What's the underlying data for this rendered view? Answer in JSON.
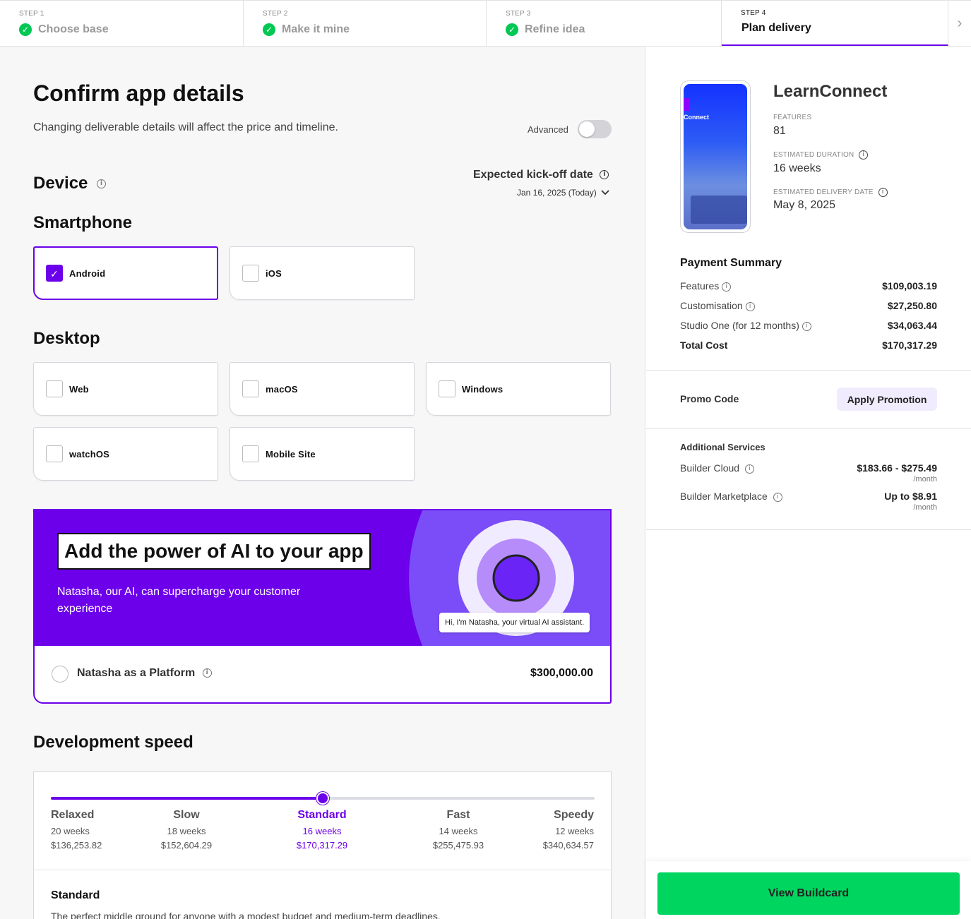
{
  "stepper": {
    "steps": [
      {
        "num": "STEP 1",
        "label": "Choose base"
      },
      {
        "num": "STEP 2",
        "label": "Make it mine"
      },
      {
        "num": "STEP 3",
        "label": "Refine idea"
      },
      {
        "num": "STEP 4",
        "label": "Plan delivery"
      }
    ],
    "check_glyph": "✓",
    "next_glyph": "›"
  },
  "main": {
    "title": "Confirm app details",
    "subtitle": "Changing deliverable details will affect the price and timeline.",
    "advanced_label": "Advanced",
    "advanced_on": false,
    "device_heading": "Device",
    "kickoff_label": "Expected kick-off date",
    "kickoff_value": "Jan 16, 2025 (Today)",
    "smartphone_heading": "Smartphone",
    "smartphone": [
      {
        "label": "Android",
        "selected": true
      },
      {
        "label": "iOS",
        "selected": false
      }
    ],
    "desktop_heading": "Desktop",
    "desktop": [
      {
        "label": "Web",
        "selected": false
      },
      {
        "label": "macOS",
        "selected": false
      },
      {
        "label": "Windows",
        "selected": false
      },
      {
        "label": "watchOS",
        "selected": false
      },
      {
        "label": "Mobile Site",
        "selected": false
      }
    ],
    "checkmark": "✓",
    "ai": {
      "title": "Add the power of AI to your app",
      "description": "Natasha, our AI, can supercharge your customer experience",
      "bubble": "Hi, I'm Natasha, your virtual AI assistant.",
      "option_label": "Natasha as a Platform",
      "option_price": "$300,000.00"
    },
    "speed_heading": "Development speed",
    "speed_options": [
      {
        "name": "Relaxed",
        "weeks": "20 weeks",
        "price": "$136,253.82"
      },
      {
        "name": "Slow",
        "weeks": "18 weeks",
        "price": "$152,604.29"
      },
      {
        "name": "Standard",
        "weeks": "16 weeks",
        "price": "$170,317.29"
      },
      {
        "name": "Fast",
        "weeks": "14 weeks",
        "price": "$255,475.93"
      },
      {
        "name": "Speedy",
        "weeks": "12 weeks",
        "price": "$340,634.57"
      }
    ],
    "speed_selected_index": 2,
    "speed_detail_title": "Standard",
    "speed_detail_desc": "The perfect middle ground for anyone with a modest budget and medium-term deadlines."
  },
  "summary": {
    "phone_text": "Connect",
    "app_name": "LearnConnect",
    "features_label": "FEATURES",
    "features_value": "81",
    "duration_label": "ESTIMATED DURATION",
    "duration_value": "16 weeks",
    "delivery_label": "ESTIMATED DELIVERY DATE",
    "delivery_value": "May 8, 2025",
    "payment_title": "Payment Summary",
    "payment_rows": [
      {
        "label": "Features",
        "value": "$109,003.19"
      },
      {
        "label": "Customisation",
        "value": "$27,250.80"
      },
      {
        "label": "Studio One (for 12 months)",
        "value": "$34,063.44"
      },
      {
        "label": "Total Cost",
        "value": "$170,317.29"
      }
    ],
    "promo_label": "Promo Code",
    "promo_button": "Apply Promotion",
    "additional_title": "Additional Services",
    "additional": [
      {
        "label": "Builder Cloud",
        "value": "$183.66 - $275.49",
        "unit": "/month"
      },
      {
        "label": "Builder Marketplace",
        "value": "Up to $8.91",
        "unit": "/month"
      }
    ],
    "cta": "View Buildcard"
  },
  "colors": {
    "accent": "#6c00ea",
    "success": "#00c853",
    "cta": "#00d65f",
    "panel_bg": "#f7f7f8"
  },
  "icons": [
    "check-circle-icon",
    "chevron-right-icon",
    "info-icon",
    "chevron-down-icon",
    "checkbox-check-icon"
  ]
}
